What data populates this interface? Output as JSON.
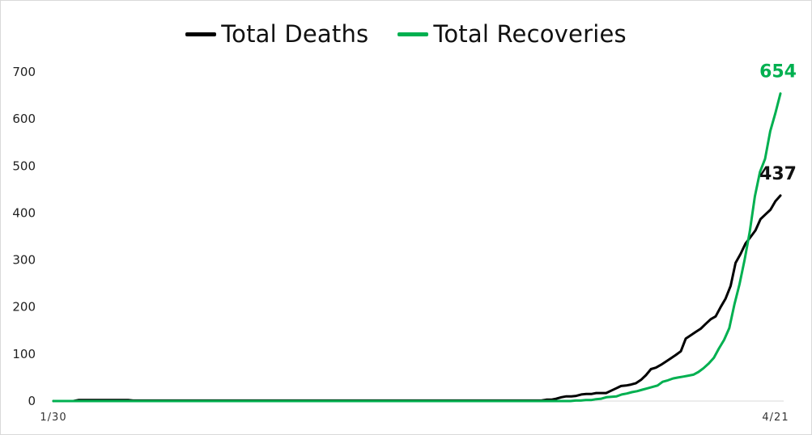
{
  "chart_data": {
    "type": "line",
    "title": "",
    "xlabel": "",
    "ylabel": "",
    "x_range": [
      "1/30",
      "4/21"
    ],
    "x_tick_labels": [
      "1/30",
      "4/21"
    ],
    "y_ticks": [
      0,
      100,
      200,
      300,
      400,
      500,
      600,
      700
    ],
    "ylim": [
      0,
      700
    ],
    "grid": false,
    "legend_position": "top",
    "series": [
      {
        "name": "Total Deaths",
        "color": "#000000",
        "end_label": "437",
        "values": [
          0,
          0,
          0,
          0,
          0,
          2,
          2,
          2,
          2,
          2,
          2,
          2,
          2,
          2,
          2,
          2,
          1,
          1,
          1,
          1,
          1,
          1,
          1,
          1,
          1,
          1,
          1,
          1,
          1,
          1,
          1,
          1,
          1,
          1,
          1,
          1,
          1,
          1,
          1,
          1,
          1,
          1,
          1,
          1,
          1,
          1,
          1,
          1,
          1,
          1,
          1,
          1,
          1,
          1,
          1,
          1,
          1,
          1,
          1,
          1,
          1,
          1,
          1,
          1,
          1,
          1,
          1,
          1,
          1,
          1,
          1,
          1,
          1,
          1,
          1,
          1,
          1,
          1,
          1,
          1,
          1,
          1,
          1,
          1,
          1,
          1,
          1,
          1,
          1,
          1,
          1,
          1,
          1,
          1,
          1,
          1,
          1,
          1,
          1,
          3,
          3,
          5,
          8,
          10,
          10,
          11,
          14,
          15,
          15,
          17,
          17,
          17,
          22,
          27,
          32,
          33,
          35,
          38,
          45,
          55,
          68,
          71,
          77,
          84,
          91,
          98,
          106,
          133,
          140,
          147,
          154,
          164,
          174,
          180,
          200,
          218,
          245,
          294,
          313,
          335,
          349,
          363,
          387,
          397,
          407,
          425,
          437
        ]
      },
      {
        "name": "Total Recoveries",
        "color": "#00b050",
        "end_label": "654",
        "values": [
          0,
          0,
          0,
          0,
          0,
          0,
          0,
          0,
          0,
          0,
          0,
          0,
          0,
          0,
          0,
          0,
          0,
          0,
          0,
          0,
          0,
          0,
          0,
          0,
          0,
          0,
          0,
          0,
          0,
          0,
          0,
          0,
          0,
          0,
          0,
          0,
          0,
          0,
          0,
          0,
          0,
          0,
          0,
          0,
          0,
          0,
          0,
          0,
          0,
          0,
          0,
          0,
          0,
          0,
          0,
          0,
          0,
          0,
          0,
          0,
          0,
          0,
          0,
          0,
          0,
          0,
          0,
          0,
          0,
          0,
          0,
          0,
          0,
          0,
          0,
          0,
          0,
          0,
          0,
          0,
          0,
          0,
          0,
          0,
          0,
          0,
          0,
          0,
          0,
          0,
          0,
          0,
          0,
          0,
          0,
          0,
          0,
          0,
          0,
          0,
          0,
          0,
          1,
          1,
          2,
          2,
          4,
          5,
          8,
          9,
          10,
          14,
          16,
          19,
          21,
          24,
          27,
          30,
          33,
          41,
          44,
          48,
          50,
          52,
          54,
          56,
          62,
          70,
          80,
          92,
          112,
          130,
          155,
          205,
          248,
          300,
          360,
          435,
          487,
          515,
          574,
          612,
          654
        ]
      }
    ]
  }
}
